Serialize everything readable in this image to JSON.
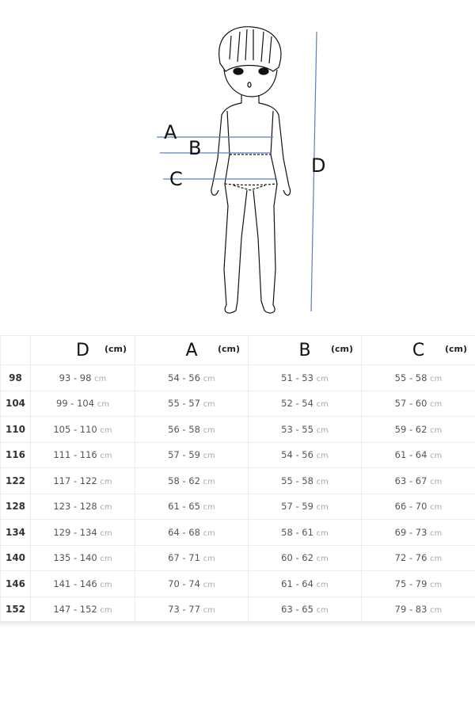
{
  "figure": {
    "labels": {
      "a": "A",
      "b": "B",
      "c": "C",
      "d": "D"
    },
    "line_color": "#5b7fc0"
  },
  "table": {
    "headers": [
      {
        "label": "",
        "unit": ""
      },
      {
        "label": "D",
        "unit": "(cm)"
      },
      {
        "label": "A",
        "unit": "(cm)"
      },
      {
        "label": "B",
        "unit": "(cm)"
      },
      {
        "label": "C",
        "unit": "(cm)"
      }
    ],
    "unit": "cm",
    "rows": [
      {
        "size": "98",
        "d": "93 - 98",
        "a": "54 - 56",
        "b": "51 - 53",
        "c": "55 - 58"
      },
      {
        "size": "104",
        "d": "99 - 104",
        "a": "55 - 57",
        "b": "52 - 54",
        "c": "57 - 60"
      },
      {
        "size": "110",
        "d": "105 - 110",
        "a": "56 - 58",
        "b": "53 - 55",
        "c": "59 - 62"
      },
      {
        "size": "116",
        "d": "111 - 116",
        "a": "57 - 59",
        "b": "54 - 56",
        "c": "61 - 64"
      },
      {
        "size": "122",
        "d": "117 - 122",
        "a": "58 - 62",
        "b": "55 - 58",
        "c": "63 - 67"
      },
      {
        "size": "128",
        "d": "123 - 128",
        "a": "61 - 65",
        "b": "57 - 59",
        "c": "66 - 70"
      },
      {
        "size": "134",
        "d": "129 - 134",
        "a": "64 - 68",
        "b": "58 - 61",
        "c": "69 - 73"
      },
      {
        "size": "140",
        "d": "135 - 140",
        "a": "67 - 71",
        "b": "60 - 62",
        "c": "72 - 76"
      },
      {
        "size": "146",
        "d": "141 - 146",
        "a": "70 - 74",
        "b": "61 - 64",
        "c": "75 - 79"
      },
      {
        "size": "152",
        "d": "147 - 152",
        "a": "73 - 77",
        "b": "63 - 65",
        "c": "79 - 83"
      }
    ]
  }
}
